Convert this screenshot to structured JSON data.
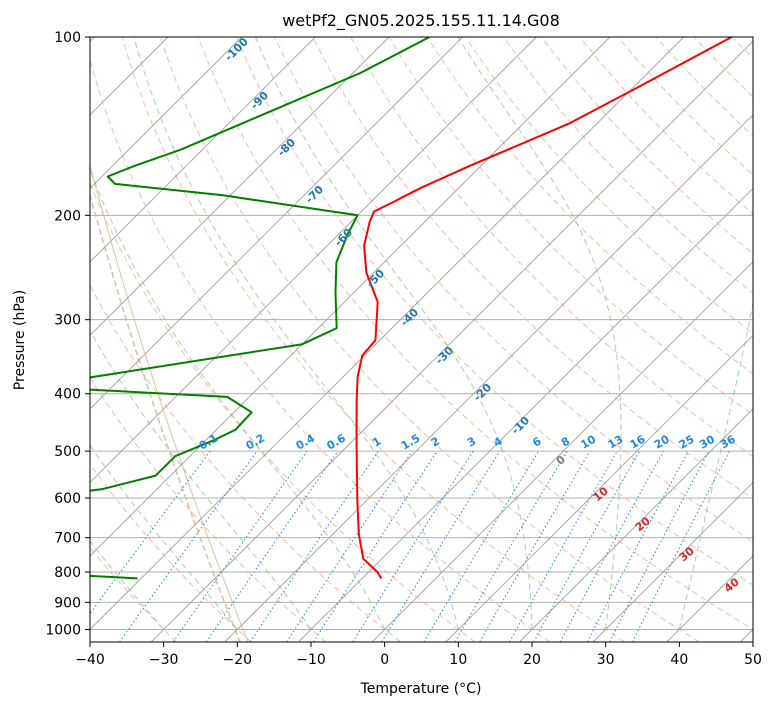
{
  "chart_data": {
    "type": "line",
    "title": "wetPf2_GN05.2025.155.11.14.G08",
    "xlabel": "Temperature (°C)",
    "ylabel": "Pressure (hPa)",
    "xlim": [
      -40,
      50
    ],
    "ylim": [
      1050,
      100
    ],
    "y_scale": "log",
    "grid": true,
    "x_ticks": [
      -40,
      -30,
      -20,
      -10,
      0,
      10,
      20,
      30,
      40,
      50
    ],
    "y_ticks": [
      100,
      200,
      300,
      400,
      500,
      600,
      700,
      800,
      900,
      1000
    ],
    "series": [
      {
        "name": "",
        "color": "#ff0000",
        "points": [
          [
            -33.5,
            100
          ],
          [
            -39.5,
            122
          ],
          [
            -43.8,
            140
          ],
          [
            -51.5,
            165
          ],
          [
            -55.2,
            180
          ],
          [
            -57.0,
            190
          ],
          [
            -58.3,
            197
          ],
          [
            -57.5,
            205
          ],
          [
            -55.0,
            225
          ],
          [
            -51.0,
            250
          ],
          [
            -45.5,
            280
          ],
          [
            -40.6,
            325
          ],
          [
            -40.3,
            345
          ],
          [
            -38.0,
            375
          ],
          [
            -35.0,
            410
          ],
          [
            -31.0,
            460
          ],
          [
            -26.0,
            530
          ],
          [
            -21.0,
            610
          ],
          [
            -16.5,
            690
          ],
          [
            -12.5,
            760
          ],
          [
            -8.8,
            800
          ],
          [
            -7.4,
            820
          ]
        ]
      },
      {
        "name": "",
        "color": "#008000",
        "points": [
          [
            -74.5,
            100
          ],
          [
            -79.0,
            115
          ],
          [
            -86.5,
            135
          ],
          [
            -93.0,
            155
          ],
          [
            -97.0,
            165
          ],
          [
            -99.2,
            172
          ],
          [
            -97.2,
            177
          ],
          [
            -81.0,
            185
          ],
          [
            -60.0,
            200
          ],
          [
            -58.8,
            215
          ],
          [
            -56.5,
            240
          ],
          [
            -52.5,
            270
          ],
          [
            -47.5,
            310
          ],
          [
            -50.0,
            330
          ],
          [
            -79.0,
            385
          ],
          [
            -79.2,
            390
          ],
          [
            -53.0,
            405
          ],
          [
            -47.6,
            430
          ],
          [
            -47.4,
            460
          ],
          [
            -49.0,
            480
          ],
          [
            -52.0,
            510
          ],
          [
            -52.0,
            550
          ],
          [
            -57.5,
            580
          ],
          [
            -71.0,
            610
          ],
          [
            -86.5,
            635
          ],
          [
            -92.1,
            642
          ],
          [
            -75.0,
            685
          ],
          [
            -67.7,
            730
          ],
          [
            -67.0,
            750
          ],
          [
            -74.0,
            770
          ],
          [
            -75.5,
            780
          ],
          [
            -62.0,
            795
          ],
          [
            -40.5,
            820
          ]
        ]
      }
    ],
    "isotherms": {
      "color": "#a0a0a0",
      "values": [
        -120,
        -110,
        -100,
        -90,
        -80,
        -70,
        -60,
        -50,
        -40,
        -30,
        -20,
        -10,
        0,
        10,
        20,
        30,
        40,
        50
      ]
    },
    "dry_adiabats": {
      "color": "#f4a582",
      "theta_c": [
        -30,
        -20,
        -10,
        0,
        10,
        20,
        30,
        40,
        50,
        60,
        70,
        80,
        90,
        100,
        110,
        120,
        130,
        140,
        150,
        160,
        170,
        180,
        190,
        200
      ]
    },
    "moist_adiabats": {
      "color": "#7fbf7f",
      "start_temps_c": [
        -100,
        -90,
        -80,
        -70,
        -60,
        -50,
        -40,
        -30,
        -20,
        -10,
        0,
        10,
        20,
        30,
        40
      ],
      "labels": [
        "-100",
        "-90",
        "-80",
        "-70",
        "-60",
        "-50",
        "-40",
        "-30",
        "-20",
        "-10"
      ],
      "label_color": "#1f77b4"
    },
    "mixing_ratios": {
      "color": "#1e88e5",
      "values": [
        0.1,
        0.2,
        0.4,
        0.6,
        1,
        1.5,
        2,
        3,
        4,
        6,
        8,
        10,
        13,
        16,
        20,
        25,
        30,
        36
      ],
      "labels": [
        "0.1",
        "0.2",
        "0.4",
        "0.6",
        "1",
        "1.5",
        "2",
        "3",
        "4",
        "6",
        "8",
        "10",
        "13",
        "16",
        "20",
        "25",
        "30",
        "36"
      ]
    },
    "red_labels": {
      "color": "#d62728",
      "values": [
        "0",
        "10",
        "20",
        "30",
        "40"
      ]
    },
    "brown_curves": {
      "color": "#d2b48c"
    }
  }
}
